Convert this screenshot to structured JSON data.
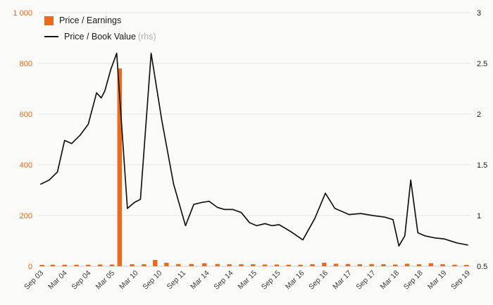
{
  "chart_data": {
    "type": "combo",
    "title": "",
    "x_unit": "category_index",
    "grid": true,
    "legend_position": "top-left",
    "categories": [
      "Sep 03",
      "Mar 04",
      "Sep 04",
      "Mar 05",
      "Mar 10",
      "Sep 10",
      "Sep 11",
      "Mar 14",
      "Sep 14",
      "Mar 15",
      "Sep 15",
      "Mar 16",
      "Sep 16",
      "Mar 17",
      "Sep 17",
      "Mar 18",
      "Sep 18",
      "Mar 19",
      "Sep 19"
    ],
    "left_axis": {
      "min": 0,
      "max": 1000,
      "tick_values": [
        0,
        200,
        400,
        600,
        800,
        1000
      ],
      "tick_labels": [
        "0",
        "200",
        "400",
        "600",
        "800",
        "1 000"
      ],
      "label_color": "#e8650f"
    },
    "right_axis": {
      "min": 0.5,
      "max": 3,
      "tick_values": [
        0.5,
        1,
        1.5,
        2,
        2.5,
        3
      ],
      "tick_labels": [
        "0.5",
        "1",
        "1.5",
        "2",
        "2.5",
        "3"
      ],
      "label_color": "#222222"
    },
    "series": [
      {
        "name": "Price / Earnings",
        "type": "bar",
        "axis": "left",
        "color": "#ed6a1c",
        "points": [
          [
            0.05,
            5
          ],
          [
            0.5,
            6
          ],
          [
            1,
            6
          ],
          [
            1.5,
            6
          ],
          [
            2,
            6
          ],
          [
            2.5,
            7
          ],
          [
            3,
            7
          ],
          [
            3.32,
            780
          ],
          [
            3.85,
            8
          ],
          [
            4.35,
            8
          ],
          [
            4.82,
            25
          ],
          [
            5.3,
            14
          ],
          [
            5.8,
            9
          ],
          [
            6.35,
            9
          ],
          [
            6.9,
            12
          ],
          [
            7.45,
            9
          ],
          [
            7.95,
            8
          ],
          [
            8.45,
            8
          ],
          [
            8.95,
            8
          ],
          [
            9.45,
            7
          ],
          [
            9.95,
            7
          ],
          [
            10.45,
            6
          ],
          [
            10.95,
            6
          ],
          [
            11.45,
            8
          ],
          [
            11.95,
            14
          ],
          [
            12.45,
            10
          ],
          [
            12.95,
            9
          ],
          [
            13.45,
            8
          ],
          [
            13.95,
            9
          ],
          [
            14.45,
            8
          ],
          [
            14.95,
            7
          ],
          [
            15.45,
            10
          ],
          [
            15.95,
            8
          ],
          [
            16.45,
            12
          ],
          [
            16.95,
            8
          ],
          [
            17.45,
            6
          ],
          [
            17.95,
            5
          ]
        ]
      },
      {
        "name": "Price / Book Value",
        "suffix": "(rhs)",
        "type": "line",
        "axis": "right",
        "color": "#141414",
        "points": [
          [
            0,
            1.31
          ],
          [
            0.35,
            1.35
          ],
          [
            0.7,
            1.43
          ],
          [
            1,
            1.74
          ],
          [
            1.3,
            1.71
          ],
          [
            1.65,
            1.79
          ],
          [
            2,
            1.9
          ],
          [
            2.35,
            2.21
          ],
          [
            2.55,
            2.16
          ],
          [
            2.7,
            2.23
          ],
          [
            2.95,
            2.44
          ],
          [
            3.2,
            2.6
          ],
          [
            3.65,
            1.07
          ],
          [
            3.95,
            1.13
          ],
          [
            4.2,
            1.16
          ],
          [
            4.65,
            2.6
          ],
          [
            5.1,
            1.94
          ],
          [
            5.6,
            1.31
          ],
          [
            6.1,
            0.9
          ],
          [
            6.45,
            1.11
          ],
          [
            6.8,
            1.13
          ],
          [
            7.1,
            1.14
          ],
          [
            7.45,
            1.08
          ],
          [
            7.75,
            1.06
          ],
          [
            8.1,
            1.06
          ],
          [
            8.45,
            1.03
          ],
          [
            8.8,
            0.93
          ],
          [
            9.1,
            0.9
          ],
          [
            9.45,
            0.92
          ],
          [
            9.75,
            0.9
          ],
          [
            10.05,
            0.91
          ],
          [
            10.55,
            0.84
          ],
          [
            11.05,
            0.76
          ],
          [
            11.55,
            0.97
          ],
          [
            12,
            1.22
          ],
          [
            12.4,
            1.07
          ],
          [
            13,
            1.01
          ],
          [
            13.5,
            1.02
          ],
          [
            14,
            1.0
          ],
          [
            14.5,
            0.985
          ],
          [
            14.85,
            0.96
          ],
          [
            15.1,
            0.7
          ],
          [
            15.35,
            0.8
          ],
          [
            15.6,
            1.35
          ],
          [
            15.9,
            0.83
          ],
          [
            16.2,
            0.8
          ],
          [
            16.6,
            0.78
          ],
          [
            17,
            0.77
          ],
          [
            17.55,
            0.73
          ],
          [
            18,
            0.71
          ]
        ]
      }
    ]
  },
  "colors": {
    "background": "#fafaf8",
    "gridline": "#e4e4e2",
    "axis_line": "#cccccc",
    "x_label": "#3a3a3a"
  }
}
